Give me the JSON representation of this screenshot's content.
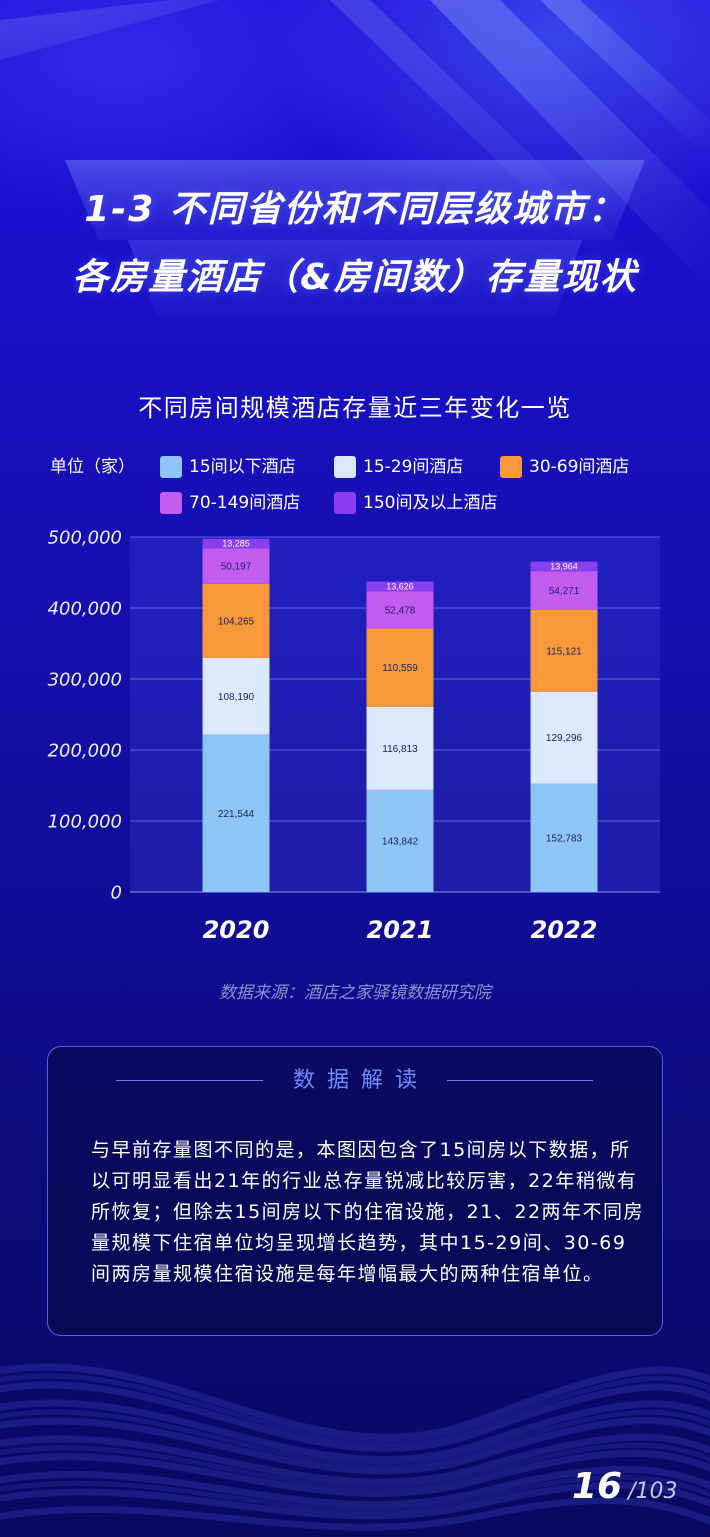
{
  "header": {
    "title_line1": "1-3 不同省份和不同层级城市：",
    "title_line2": "各房量酒店（&房间数）存量现状"
  },
  "chart_data": {
    "type": "bar",
    "stacked": true,
    "title": "不同房间规模酒店存量近三年变化一览",
    "unit_label": "单位（家）",
    "categories": [
      "2020",
      "2021",
      "2022"
    ],
    "series": [
      {
        "name": "15间以下酒店",
        "color": "#8fc4f7",
        "values": [
          221544,
          143842,
          152783
        ],
        "labels": [
          "221,544",
          "143,842",
          "152,783"
        ]
      },
      {
        "name": "15-29间酒店",
        "color": "#dce8fb",
        "values": [
          108190,
          116813,
          129296
        ],
        "labels": [
          "108,190",
          "116,813",
          "129,296"
        ]
      },
      {
        "name": "30-69间酒店",
        "color": "#f7993b",
        "values": [
          104265,
          110559,
          115121
        ],
        "labels": [
          "104,265",
          "110,559",
          "115,121"
        ]
      },
      {
        "name": "70-149间酒店",
        "color": "#c45cf2",
        "values": [
          50197,
          52478,
          54271
        ],
        "labels": [
          "50,197",
          "52,478",
          "54,271"
        ]
      },
      {
        "name": "150间及以上酒店",
        "color": "#8b3df0",
        "values": [
          13285,
          13626,
          13964
        ],
        "labels": [
          "13,285",
          "13,626",
          "13,964"
        ]
      }
    ],
    "ylim": [
      0,
      500000
    ],
    "yticks": [
      0,
      100000,
      200000,
      300000,
      400000,
      500000
    ],
    "ytick_labels": [
      "0",
      "100,000",
      "200,000",
      "300,000",
      "400,000",
      "500,000"
    ],
    "grid": true,
    "legend_position": "top"
  },
  "source": "数据来源：酒店之家驿镜数据研究院",
  "interpretation": {
    "heading": "数据解读",
    "lines": [
      "与早前存量图不同的是，本图因包含了15间房以下数据，所",
      "以可明显看出21年的行业总存量锐减比较厉害，22年稍微有",
      "所恢复；但除去15间房以下的住宿设施，21、22两年不同房",
      "量规模下住宿单位均呈现增长趋势，其中15-29间、30-69",
      "间两房量规模住宿设施是每年增幅最大的两种住宿单位。"
    ]
  },
  "pagination": {
    "current": "16",
    "total": "/103"
  },
  "theme": {
    "panel_accent": "#6f8cff"
  }
}
